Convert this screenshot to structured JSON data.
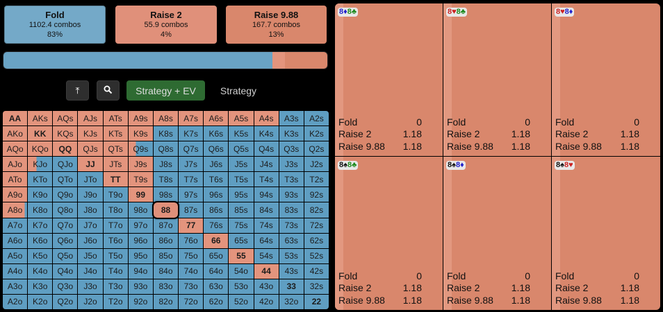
{
  "actions": [
    {
      "name": "Fold",
      "combos": "1102.4 combos",
      "pct": "83%"
    },
    {
      "name": "Raise 2",
      "combos": "55.9 combos",
      "pct": "4%"
    },
    {
      "name": "Raise 9.88",
      "combos": "167.7 combos",
      "pct": "13%"
    }
  ],
  "frequency_bar": [
    {
      "action": "Fold",
      "fraction": 0.83,
      "color": "#6aa3c4"
    },
    {
      "action": "Raise 2",
      "fraction": 0.04,
      "color": "#e3947d"
    },
    {
      "action": "Raise 9.88",
      "fraction": 0.13,
      "color": "#d9876c"
    }
  ],
  "toolbar": {
    "collapse_icon": "⤒",
    "search_icon": "🔍",
    "strategy_ev_label": "Strategy + EV",
    "strategy_label": "Strategy"
  },
  "colors": {
    "fold": "#5f9ec2",
    "raise_2": "#e3947d",
    "raise_988": "#d9876c",
    "selected_hand": "#e0907a"
  },
  "range_grid": {
    "ranks": [
      "A",
      "K",
      "Q",
      "J",
      "T",
      "9",
      "8",
      "7",
      "6",
      "5",
      "4",
      "3",
      "2"
    ],
    "selected": "88",
    "cells": [
      [
        "AA",
        "AKs",
        "AQs",
        "AJs",
        "ATs",
        "A9s",
        "A8s",
        "A7s",
        "A6s",
        "A5s",
        "A4s",
        "A3s",
        "A2s"
      ],
      [
        "AKo",
        "KK",
        "KQs",
        "KJs",
        "KTs",
        "K9s",
        "K8s",
        "K7s",
        "K6s",
        "K5s",
        "K4s",
        "K3s",
        "K2s"
      ],
      [
        "AQo",
        "KQo",
        "QQ",
        "QJs",
        "QTs",
        "Q9s",
        "Q8s",
        "Q7s",
        "Q6s",
        "Q5s",
        "Q4s",
        "Q3s",
        "Q2s"
      ],
      [
        "AJo",
        "KJo",
        "QJo",
        "JJ",
        "JTs",
        "J9s",
        "J8s",
        "J7s",
        "J6s",
        "J5s",
        "J4s",
        "J3s",
        "J2s"
      ],
      [
        "ATo",
        "KTo",
        "QTo",
        "JTo",
        "TT",
        "T9s",
        "T8s",
        "T7s",
        "T6s",
        "T5s",
        "T4s",
        "T3s",
        "T2s"
      ],
      [
        "A9o",
        "K9o",
        "Q9o",
        "J9o",
        "T9o",
        "99",
        "98s",
        "97s",
        "96s",
        "95s",
        "94s",
        "93s",
        "92s"
      ],
      [
        "A8o",
        "K8o",
        "Q8o",
        "J8o",
        "T8o",
        "98o",
        "88",
        "87s",
        "86s",
        "85s",
        "84s",
        "83s",
        "82s"
      ],
      [
        "A7o",
        "K7o",
        "Q7o",
        "J7o",
        "T7o",
        "97o",
        "87o",
        "77",
        "76s",
        "75s",
        "74s",
        "73s",
        "72s"
      ],
      [
        "A6o",
        "K6o",
        "Q6o",
        "J6o",
        "T6o",
        "96o",
        "86o",
        "76o",
        "66",
        "65s",
        "64s",
        "63s",
        "62s"
      ],
      [
        "A5o",
        "K5o",
        "Q5o",
        "J5o",
        "T5o",
        "95o",
        "85o",
        "75o",
        "65o",
        "55",
        "54s",
        "53s",
        "52s"
      ],
      [
        "A4o",
        "K4o",
        "Q4o",
        "J4o",
        "T4o",
        "94o",
        "84o",
        "74o",
        "64o",
        "54o",
        "44",
        "43s",
        "42s"
      ],
      [
        "A3o",
        "K3o",
        "Q3o",
        "J3o",
        "T3o",
        "93o",
        "83o",
        "73o",
        "63o",
        "53o",
        "43o",
        "33",
        "32s"
      ],
      [
        "A2o",
        "K2o",
        "Q2o",
        "J2o",
        "T2o",
        "92o",
        "82o",
        "72o",
        "62o",
        "52o",
        "42o",
        "32o",
        "22"
      ]
    ],
    "raise_fraction": [
      [
        1,
        1,
        1,
        1,
        1,
        1,
        1,
        1,
        1,
        1,
        1,
        0,
        0
      ],
      [
        1,
        1,
        1,
        1,
        1,
        1,
        0,
        0,
        0,
        0,
        0,
        0,
        0
      ],
      [
        1,
        1,
        1,
        1,
        1,
        0.3,
        0,
        0,
        0,
        0,
        0,
        0,
        0
      ],
      [
        1,
        0.35,
        0,
        1,
        1,
        1,
        0,
        0,
        0,
        0,
        0,
        0,
        0
      ],
      [
        1,
        0,
        0,
        0,
        1,
        1,
        0,
        0,
        0,
        0,
        0,
        0,
        0
      ],
      [
        1,
        0,
        0,
        0,
        0,
        1,
        0,
        0,
        0,
        0,
        0,
        0,
        0
      ],
      [
        0.9,
        0,
        0,
        0,
        0,
        0,
        1,
        0,
        0,
        0,
        0,
        0,
        0
      ],
      [
        0,
        0,
        0,
        0,
        0,
        0,
        0,
        1,
        0,
        0,
        0,
        0,
        0
      ],
      [
        0,
        0,
        0,
        0,
        0,
        0,
        0,
        0,
        1,
        0,
        0,
        0,
        0
      ],
      [
        0,
        0,
        0,
        0,
        0,
        0,
        0,
        0,
        0,
        1,
        0,
        0,
        0
      ],
      [
        0,
        0,
        0,
        0,
        0,
        0,
        0,
        0,
        0,
        0,
        1,
        0,
        0
      ],
      [
        0,
        0,
        0,
        0,
        0,
        0,
        0,
        0,
        0,
        0,
        0,
        0,
        0
      ],
      [
        0,
        0,
        0,
        0,
        0,
        0,
        0,
        0,
        0,
        0,
        0,
        0,
        0
      ]
    ]
  },
  "combos": [
    {
      "c1": "8",
      "s1": "♦",
      "col1": "#2222cc",
      "c2": "8",
      "s2": "♣",
      "col2": "#1d8a1d",
      "rows": [
        [
          "Fold",
          "0"
        ],
        [
          "Raise 2",
          "1.18"
        ],
        [
          "Raise 9.88",
          "1.18"
        ]
      ]
    },
    {
      "c1": "8",
      "s1": "♥",
      "col1": "#cc2222",
      "c2": "8",
      "s2": "♣",
      "col2": "#1d8a1d",
      "rows": [
        [
          "Fold",
          "0"
        ],
        [
          "Raise 2",
          "1.18"
        ],
        [
          "Raise 9.88",
          "1.18"
        ]
      ]
    },
    {
      "c1": "8",
      "s1": "♥",
      "col1": "#cc2222",
      "c2": "8",
      "s2": "♦",
      "col2": "#2222cc",
      "rows": [
        [
          "Fold",
          "0"
        ],
        [
          "Raise 2",
          "1.18"
        ],
        [
          "Raise 9.88",
          "1.18"
        ]
      ]
    },
    {
      "c1": "8",
      "s1": "♠",
      "col1": "#111111",
      "c2": "8",
      "s2": "♣",
      "col2": "#1d8a1d",
      "rows": [
        [
          "Fold",
          "0"
        ],
        [
          "Raise 2",
          "1.18"
        ],
        [
          "Raise 9.88",
          "1.18"
        ]
      ]
    },
    {
      "c1": "8",
      "s1": "♠",
      "col1": "#111111",
      "c2": "8",
      "s2": "♦",
      "col2": "#2222cc",
      "rows": [
        [
          "Fold",
          "0"
        ],
        [
          "Raise 2",
          "1.18"
        ],
        [
          "Raise 9.88",
          "1.18"
        ]
      ]
    },
    {
      "c1": "8",
      "s1": "♠",
      "col1": "#111111",
      "c2": "8",
      "s2": "♥",
      "col2": "#cc2222",
      "rows": [
        [
          "Fold",
          "0"
        ],
        [
          "Raise 2",
          "1.18"
        ],
        [
          "Raise 9.88",
          "1.18"
        ]
      ]
    }
  ]
}
